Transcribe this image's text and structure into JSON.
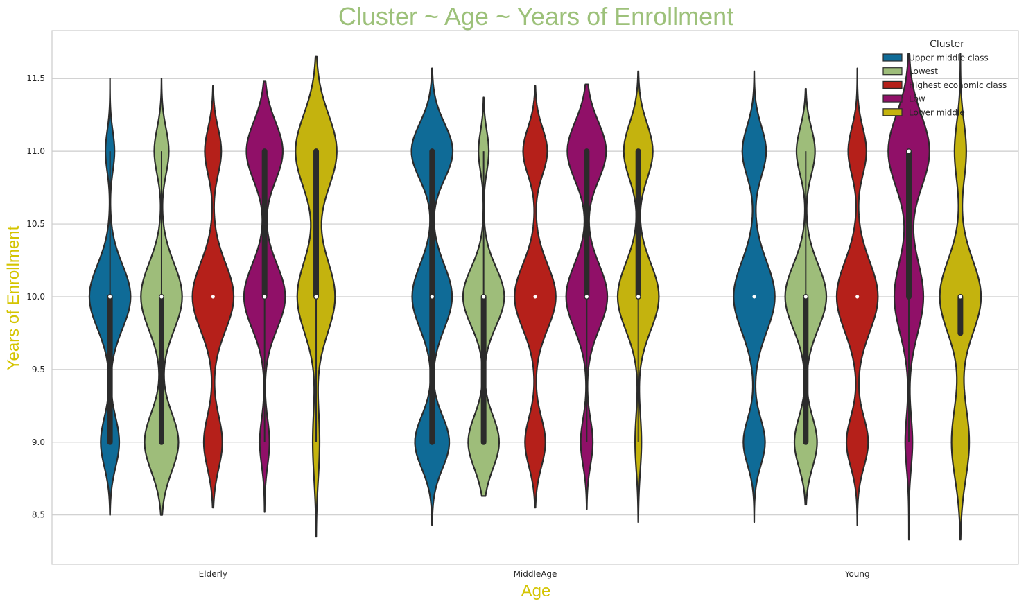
{
  "chart_data": {
    "type": "violin",
    "title": "Cluster ~ Age ~ Years of Enrollment",
    "xlabel": "Age",
    "ylabel": "Years of Enrollment",
    "categories": [
      "Elderly",
      "MiddleAge",
      "Young"
    ],
    "ylim": [
      8.16,
      11.83
    ],
    "yticks": [
      8.5,
      9.0,
      9.5,
      10.0,
      10.5,
      11.0,
      11.5
    ],
    "ytick_labels": [
      "8.5",
      "9.0",
      "9.5",
      "10.0",
      "10.5",
      "11.0",
      "11.5"
    ],
    "grid": true,
    "legend": {
      "title": "Cluster",
      "placement": "top-right"
    },
    "colors": {
      "title": "#9dc17a",
      "axis_label": "#d4c400",
      "grid": "#cccccc",
      "outline": "#2b2b2b"
    },
    "series": [
      {
        "name": "Upper middle class",
        "color": "#0f6b97",
        "violins": [
          {
            "range": [
              8.5,
              11.5
            ],
            "peaks": [
              [
                10.0,
                1.0,
                0.22
              ],
              [
                9.0,
                0.45,
                0.17
              ],
              [
                11.0,
                0.22,
                0.14
              ]
            ],
            "median": 10.0,
            "q1": 9.0,
            "q3": 10.0,
            "whisker": [
              9.0,
              11.0
            ]
          },
          {
            "range": [
              8.43,
              11.57
            ],
            "peaks": [
              [
                9.0,
                0.5,
                0.18
              ],
              [
                10.0,
                0.58,
                0.22
              ],
              [
                11.0,
                0.6,
                0.19
              ]
            ],
            "median": 10.0,
            "q1": 9.0,
            "q3": 11.0,
            "whisker": [
              9.0,
              11.0
            ]
          },
          {
            "range": [
              8.45,
              11.55
            ],
            "peaks": [
              [
                9.0,
                0.5,
                0.16
              ],
              [
                10.0,
                0.95,
                0.24
              ],
              [
                11.0,
                0.55,
                0.17
              ]
            ],
            "median": 10.0,
            "q1": 10.0,
            "q3": 10.0,
            "whisker": [
              10.0,
              10.0
            ]
          }
        ]
      },
      {
        "name": "Lowest",
        "color": "#9ebd7a",
        "violins": [
          {
            "range": [
              8.5,
              11.5
            ],
            "peaks": [
              [
                9.0,
                0.7,
                0.2
              ],
              [
                10.0,
                0.85,
                0.23
              ],
              [
                11.0,
                0.3,
                0.16
              ]
            ],
            "median": 10.0,
            "q1": 9.0,
            "q3": 10.0,
            "whisker": [
              9.0,
              11.0
            ]
          },
          {
            "range": [
              8.63,
              11.37
            ],
            "peaks": [
              [
                9.0,
                0.75,
                0.18
              ],
              [
                10.0,
                1.0,
                0.2
              ],
              [
                11.0,
                0.25,
                0.14
              ]
            ],
            "median": 10.0,
            "q1": 9.0,
            "q3": 10.0,
            "whisker": [
              9.0,
              11.0
            ]
          },
          {
            "range": [
              8.57,
              11.43
            ],
            "peaks": [
              [
                9.0,
                0.55,
                0.17
              ],
              [
                10.0,
                1.0,
                0.22
              ],
              [
                11.0,
                0.45,
                0.16
              ]
            ],
            "median": 10.0,
            "q1": 9.0,
            "q3": 10.0,
            "whisker": [
              9.0,
              11.0
            ]
          }
        ]
      },
      {
        "name": "Highest economic class",
        "color": "#b5201a",
        "violins": [
          {
            "range": [
              8.55,
              11.45
            ],
            "peaks": [
              [
                9.0,
                0.45,
                0.18
              ],
              [
                10.0,
                1.0,
                0.23
              ],
              [
                11.0,
                0.4,
                0.16
              ]
            ],
            "median": 10.0,
            "q1": 10.0,
            "q3": 10.0,
            "whisker": [
              10.0,
              10.0
            ]
          },
          {
            "range": [
              8.55,
              11.45
            ],
            "peaks": [
              [
                9.0,
                0.42,
                0.17
              ],
              [
                10.0,
                0.85,
                0.22
              ],
              [
                11.0,
                0.5,
                0.16
              ]
            ],
            "median": 10.0,
            "q1": 10.0,
            "q3": 10.0,
            "whisker": [
              10.0,
              10.0
            ]
          },
          {
            "range": [
              8.43,
              11.57
            ],
            "peaks": [
              [
                9.0,
                0.5,
                0.17
              ],
              [
                10.0,
                0.95,
                0.24
              ],
              [
                11.0,
                0.42,
                0.16
              ]
            ],
            "median": 10.0,
            "q1": 10.0,
            "q3": 10.0,
            "whisker": [
              10.0,
              10.0
            ]
          }
        ]
      },
      {
        "name": "Low",
        "color": "#901068",
        "violins": [
          {
            "range": [
              8.52,
              11.48
            ],
            "peaks": [
              [
                9.0,
                0.2,
                0.16
              ],
              [
                10.0,
                0.85,
                0.22
              ],
              [
                11.0,
                0.75,
                0.2
              ]
            ],
            "median": 10.0,
            "q1": 10.0,
            "q3": 11.0,
            "whisker": [
              9.0,
              11.0
            ]
          },
          {
            "range": [
              8.54,
              11.46
            ],
            "peaks": [
              [
                9.0,
                0.25,
                0.16
              ],
              [
                10.0,
                0.85,
                0.22
              ],
              [
                11.0,
                0.8,
                0.2
              ]
            ],
            "median": 10.0,
            "q1": 10.0,
            "q3": 11.0,
            "whisker": [
              9.0,
              11.0
            ]
          },
          {
            "range": [
              8.33,
              11.67
            ],
            "peaks": [
              [
                9.0,
                0.15,
                0.18
              ],
              [
                10.0,
                0.6,
                0.25
              ],
              [
                11.0,
                0.85,
                0.25
              ]
            ],
            "median": 11.0,
            "q1": 10.0,
            "q3": 11.0,
            "whisker": [
              9.0,
              11.0
            ]
          }
        ]
      },
      {
        "name": "Lower middle",
        "color": "#c4b30e",
        "violins": [
          {
            "range": [
              8.35,
              11.65
            ],
            "peaks": [
              [
                9.0,
                0.1,
                0.25
              ],
              [
                10.0,
                0.55,
                0.25
              ],
              [
                11.0,
                0.6,
                0.25
              ]
            ],
            "median": 10.0,
            "q1": 10.0,
            "q3": 11.0,
            "whisker": [
              9.0,
              11.0
            ]
          },
          {
            "range": [
              8.45,
              11.55
            ],
            "peaks": [
              [
                9.0,
                0.12,
                0.2
              ],
              [
                10.0,
                0.78,
                0.23
              ],
              [
                11.0,
                0.55,
                0.19
              ]
            ],
            "median": 10.0,
            "q1": 10.0,
            "q3": 11.0,
            "whisker": [
              9.0,
              11.0
            ]
          },
          {
            "range": [
              8.33,
              11.67
            ],
            "peaks": [
              [
                9.0,
                0.3,
                0.25
              ],
              [
                10.0,
                0.7,
                0.25
              ],
              [
                11.0,
                0.2,
                0.2
              ]
            ],
            "median": 10.0,
            "q1": 9.75,
            "q3": 10.0,
            "whisker": [
              9.75,
              10.0
            ]
          }
        ]
      }
    ]
  }
}
